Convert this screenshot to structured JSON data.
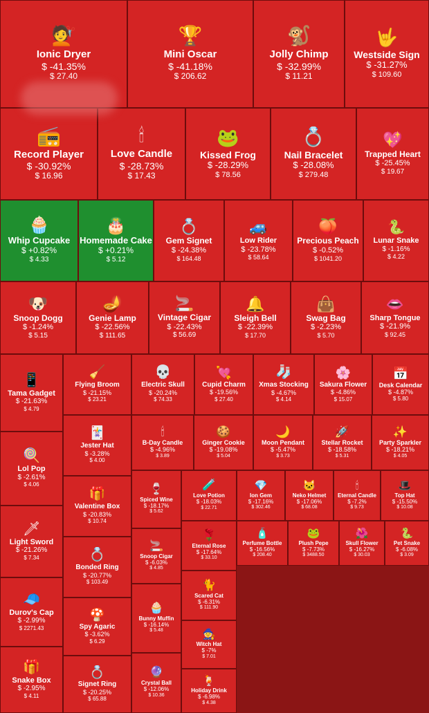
{
  "chart_data": {
    "type": "heatmap",
    "colors": {
      "down": "#d42424",
      "up": "#1f8f2f"
    },
    "items": [
      {
        "name": "Ionic Dryer",
        "change": "$ -41.35%",
        "price": "$ 27.40",
        "icon": "💇"
      },
      {
        "name": "Mini Oscar",
        "change": "$ -41.18%",
        "price": "$ 206.62",
        "icon": "🏆"
      },
      {
        "name": "Jolly Chimp",
        "change": "$ -32.99%",
        "price": "$ 11.21",
        "icon": "🐒"
      },
      {
        "name": "Westside Sign",
        "change": "$ -31.27%",
        "price": "$ 109.60",
        "icon": "🤟"
      },
      {
        "name": "Record Player",
        "change": "$ -30.92%",
        "price": "$ 16.96",
        "icon": "📻"
      },
      {
        "name": "Love Candle",
        "change": "$ -28.73%",
        "price": "$ 17.43",
        "icon": "🕯"
      },
      {
        "name": "Kissed Frog",
        "change": "$ -28.29%",
        "price": "$ 78.56",
        "icon": "🐸"
      },
      {
        "name": "Nail Bracelet",
        "change": "$ -28.08%",
        "price": "$ 279.48",
        "icon": "💍"
      },
      {
        "name": "Trapped Heart",
        "change": "$ -25.45%",
        "price": "$ 19.67",
        "icon": "💖"
      },
      {
        "name": "Whip Cupcake",
        "change": "$ +0.82%",
        "price": "$ 4.33",
        "icon": "🧁"
      },
      {
        "name": "Homemade Cake",
        "change": "$ +0.21%",
        "price": "$ 5.12",
        "icon": "🎂"
      },
      {
        "name": "Gem Signet",
        "change": "$ -24.38%",
        "price": "$ 164.48",
        "icon": "💍"
      },
      {
        "name": "Low Rider",
        "change": "$ -23.78%",
        "price": "$ 58.64",
        "icon": "🚙"
      },
      {
        "name": "Precious Peach",
        "change": "$ -0.52%",
        "price": "$ 1041.20",
        "icon": "🍑"
      },
      {
        "name": "Lunar Snake",
        "change": "$ -1.16%",
        "price": "$ 4.22",
        "icon": "🐍"
      },
      {
        "name": "Snoop Dogg",
        "change": "$ -1.24%",
        "price": "$ 5.15",
        "icon": "🐶"
      },
      {
        "name": "Genie Lamp",
        "change": "$ -22.56%",
        "price": "$ 111.65",
        "icon": "🪔"
      },
      {
        "name": "Vintage Cigar",
        "change": "$ -22.43%",
        "price": "$ 56.69",
        "icon": "🚬"
      },
      {
        "name": "Sleigh Bell",
        "change": "$ -22.39%",
        "price": "$ 17.70",
        "icon": "🔔"
      },
      {
        "name": "Swag Bag",
        "change": "$ -2.23%",
        "price": "$ 5.70",
        "icon": "👜"
      },
      {
        "name": "Sharp Tongue",
        "change": "$ -21.9%",
        "price": "$ 92.45",
        "icon": "👄"
      },
      {
        "name": "Tama Gadget",
        "change": "$ -21.63%",
        "price": "$ 4.79",
        "icon": "📱"
      },
      {
        "name": "Flying Broom",
        "change": "$ -21.15%",
        "price": "$ 23.21",
        "icon": "🧹"
      },
      {
        "name": "Electric Skull",
        "change": "$ -20.24%",
        "price": "$ 74.33",
        "icon": "💀"
      },
      {
        "name": "Cupid Charm",
        "change": "$ -19.56%",
        "price": "$ 27.40",
        "icon": "💘"
      },
      {
        "name": "Xmas Stocking",
        "change": "$ -4.67%",
        "price": "$ 4.14",
        "icon": "🧦"
      },
      {
        "name": "Sakura Flower",
        "change": "$ -4.86%",
        "price": "$ 15.07",
        "icon": "🌸"
      },
      {
        "name": "Desk Calendar",
        "change": "$ -4.87%",
        "price": "$ 5.80",
        "icon": "📅"
      },
      {
        "name": "Jester Hat",
        "change": "$ -3.28%",
        "price": "$ 4.00",
        "icon": "🃏"
      },
      {
        "name": "B-Day Candle",
        "change": "$ -4.96%",
        "price": "$ 3.89",
        "icon": "🕯"
      },
      {
        "name": "Ginger Cookie",
        "change": "$ -19.08%",
        "price": "$ 5.04",
        "icon": "🍪"
      },
      {
        "name": "Moon Pendant",
        "change": "$ -5.47%",
        "price": "$ 3.73",
        "icon": "🌙"
      },
      {
        "name": "Stellar Rocket",
        "change": "$ -18.58%",
        "price": "$ 5.31",
        "icon": "🚀"
      },
      {
        "name": "Party Sparkler",
        "change": "$ -18.21%",
        "price": "$ 4.05",
        "icon": "✨"
      },
      {
        "name": "Lol Pop",
        "change": "$ -2.61%",
        "price": "$ 4.06",
        "icon": "🍭"
      },
      {
        "name": "Valentine Box",
        "change": "$ -20.83%",
        "price": "$ 10.74",
        "icon": "🎁"
      },
      {
        "name": "Spiced Wine",
        "change": "$ -18.17%",
        "price": "$ 5.62",
        "icon": "🍷"
      },
      {
        "name": "Love Potion",
        "change": "$ -18.03%",
        "price": "$ 22.71",
        "icon": "🧪"
      },
      {
        "name": "Ion Gem",
        "change": "$ -17.16%",
        "price": "$ 302.46",
        "icon": "💎"
      },
      {
        "name": "Neko Helmet",
        "change": "$ -17.06%",
        "price": "$ 68.08",
        "icon": "🐱"
      },
      {
        "name": "Eternal Candle",
        "change": "$ -7.2%",
        "price": "$ 9.73",
        "icon": "🕯"
      },
      {
        "name": "Top Hat",
        "change": "$ -15.50%",
        "price": "$ 10.08",
        "icon": "🎩"
      },
      {
        "name": "Light Sword",
        "change": "$ -21.26%",
        "price": "$ 7.34",
        "icon": "🗡"
      },
      {
        "name": "Eternal Rose",
        "change": "$ -17.64%",
        "price": "$ 33.10",
        "icon": "🌹"
      },
      {
        "name": "Perfume Bottle",
        "change": "$ -16.56%",
        "price": "$ 208.40",
        "icon": "🧴"
      },
      {
        "name": "Plush Pepe",
        "change": "$ -7.73%",
        "price": "$ 3488.50",
        "icon": "🐸"
      },
      {
        "name": "Skull Flower",
        "change": "$ -16.27%",
        "price": "$ 30.03",
        "icon": "🌺"
      },
      {
        "name": "Pet Snake",
        "change": "$ -6.08%",
        "price": "$ 3.09",
        "icon": "🐍"
      },
      {
        "name": "Bonded Ring",
        "change": "$ -20.77%",
        "price": "$ 103.49",
        "icon": "💍"
      },
      {
        "name": "Snoop Cigar",
        "change": "$ -6.03%",
        "price": "$ 4.85",
        "icon": "🚬"
      },
      {
        "name": "Scared Cat",
        "change": "$ -6.31%",
        "price": "$ 111.90",
        "icon": "🐈"
      },
      {
        "name": "Durov's Cap",
        "change": "$ -2.99%",
        "price": "$ 2271.43",
        "icon": "🧢"
      },
      {
        "name": "Spy Agaric",
        "change": "$ -3.62%",
        "price": "$ 6.29",
        "icon": "🍄"
      },
      {
        "name": "Bunny Muffin",
        "change": "$ -16.14%",
        "price": "$ 5.48",
        "icon": "🧁"
      },
      {
        "name": "Witch Hat",
        "change": "$ -7%",
        "price": "$ 7.01",
        "icon": "🧙"
      },
      {
        "name": "Snake Box",
        "change": "$ -2.95%",
        "price": "$ 4.11",
        "icon": "🎁"
      },
      {
        "name": "Signet Ring",
        "change": "$ -20.25%",
        "price": "$ 65.88",
        "icon": "💍"
      },
      {
        "name": "Crystal Ball",
        "change": "$ -12.06%",
        "price": "$ 10.36",
        "icon": "🔮"
      },
      {
        "name": "Holiday Drink",
        "change": "$ -6.98%",
        "price": "$ 4.38",
        "icon": "🍹"
      }
    ]
  }
}
